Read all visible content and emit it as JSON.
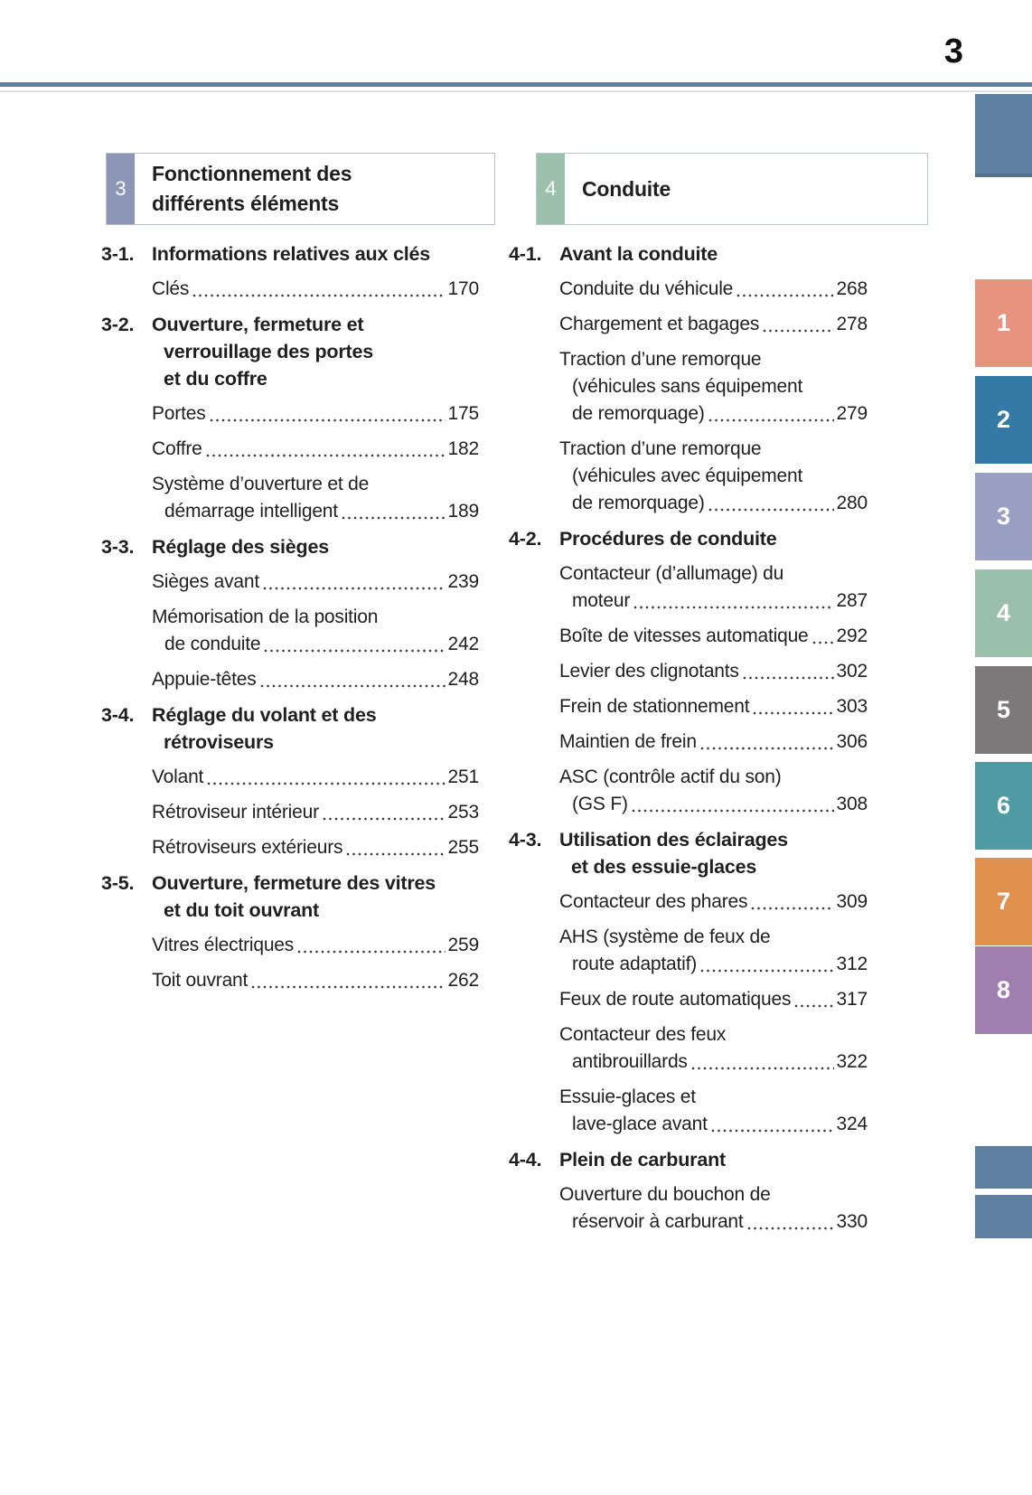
{
  "page": {
    "number": "3"
  },
  "accent_colors": {
    "rule": "#5e80a0",
    "rail_block": "#5e80a0"
  },
  "sections": [
    {
      "tab_label": "3",
      "tab_color": "#8e96b7",
      "border_color": "#b9bfce",
      "title_lines": [
        "Fonctionnement des",
        "différents éléments"
      ],
      "groups": [
        {
          "number": "3-1.",
          "heading_lines": [
            "Informations relatives aux clés"
          ],
          "entries": [
            {
              "lines": [
                "Clés"
              ],
              "page": "170"
            }
          ]
        },
        {
          "number": "3-2.",
          "heading_lines": [
            "Ouverture, fermeture et",
            "verrouillage des portes",
            "et du coffre"
          ],
          "entries": [
            {
              "lines": [
                "Portes"
              ],
              "page": "175"
            },
            {
              "lines": [
                "Coffre"
              ],
              "page": "182"
            },
            {
              "lines": [
                "Système d’ouverture et de",
                "démarrage intelligent"
              ],
              "page": "189"
            }
          ]
        },
        {
          "number": "3-3.",
          "heading_lines": [
            "Réglage des sièges"
          ],
          "entries": [
            {
              "lines": [
                "Sièges avant"
              ],
              "page": "239"
            },
            {
              "lines": [
                "Mémorisation de la position",
                "de conduite"
              ],
              "page": "242"
            },
            {
              "lines": [
                "Appuie-têtes"
              ],
              "page": "248"
            }
          ]
        },
        {
          "number": "3-4.",
          "heading_lines": [
            "Réglage du volant et des",
            "rétroviseurs"
          ],
          "entries": [
            {
              "lines": [
                "Volant"
              ],
              "page": "251"
            },
            {
              "lines": [
                "Rétroviseur intérieur"
              ],
              "page": "253"
            },
            {
              "lines": [
                "Rétroviseurs extérieurs"
              ],
              "page": "255"
            }
          ]
        },
        {
          "number": "3-5.",
          "heading_lines": [
            "Ouverture, fermeture des vitres",
            "et du toit ouvrant"
          ],
          "entries": [
            {
              "lines": [
                "Vitres électriques"
              ],
              "page": "259"
            },
            {
              "lines": [
                "Toit ouvrant"
              ],
              "page": "262"
            }
          ]
        }
      ]
    },
    {
      "tab_label": "4",
      "tab_color": "#9dc0ad",
      "border_color": "#b5cec2",
      "title_lines": [
        "Conduite"
      ],
      "groups": [
        {
          "number": "4-1.",
          "heading_lines": [
            "Avant la conduite"
          ],
          "entries": [
            {
              "lines": [
                "Conduite du véhicule"
              ],
              "page": "268"
            },
            {
              "lines": [
                "Chargement et bagages"
              ],
              "page": "278"
            },
            {
              "lines": [
                "Traction d’une remorque",
                "(véhicules sans équipement",
                "de remorquage)"
              ],
              "page": "279"
            },
            {
              "lines": [
                "Traction d’une remorque",
                "(véhicules avec équipement",
                "de remorquage)"
              ],
              "page": "280"
            }
          ]
        },
        {
          "number": "4-2.",
          "heading_lines": [
            "Procédures de conduite"
          ],
          "entries": [
            {
              "lines": [
                "Contacteur (d’allumage) du",
                "moteur"
              ],
              "page": "287"
            },
            {
              "lines": [
                "Boîte de vitesses automatique"
              ],
              "page": "292"
            },
            {
              "lines": [
                "Levier des clignotants"
              ],
              "page": "302"
            },
            {
              "lines": [
                "Frein de stationnement"
              ],
              "page": "303"
            },
            {
              "lines": [
                "Maintien de frein"
              ],
              "page": "306"
            },
            {
              "lines": [
                "ASC (contrôle actif du son)",
                "(GS F)"
              ],
              "page": "308"
            }
          ]
        },
        {
          "number": "4-3.",
          "heading_lines": [
            "Utilisation des éclairages",
            "et des essuie-glaces"
          ],
          "entries": [
            {
              "lines": [
                "Contacteur des phares"
              ],
              "page": "309"
            },
            {
              "lines": [
                "AHS (système de feux de",
                "route adaptatif)"
              ],
              "page": "312"
            },
            {
              "lines": [
                "Feux de route automatiques"
              ],
              "page": "317"
            },
            {
              "lines": [
                "Contacteur des feux",
                "antibrouillards"
              ],
              "page": "322"
            },
            {
              "lines": [
                "Essuie-glaces et",
                "lave-glace avant"
              ],
              "page": "324"
            }
          ]
        },
        {
          "number": "4-4.",
          "heading_lines": [
            "Plein de carburant"
          ],
          "entries": [
            {
              "lines": [
                "Ouverture du bouchon de",
                "réservoir à carburant"
              ],
              "page": "330"
            }
          ]
        }
      ]
    }
  ],
  "side_rail": {
    "top_block_color": "#5e80a0",
    "tabs": [
      {
        "label": "1",
        "color": "#e6947e"
      },
      {
        "label": "2",
        "color": "#337ba6"
      },
      {
        "label": "3",
        "color": "#989fc2"
      },
      {
        "label": "4",
        "color": "#9ac0ab"
      },
      {
        "label": "5",
        "color": "#7c797a"
      },
      {
        "label": "6",
        "color": "#4f9ba3"
      },
      {
        "label": "7",
        "color": "#e0914d"
      },
      {
        "label": "8",
        "color": "#a07fb0"
      }
    ],
    "bottom_blocks": [
      {
        "color": "#5e80a0"
      },
      {
        "color": "#5e80a0"
      }
    ]
  }
}
